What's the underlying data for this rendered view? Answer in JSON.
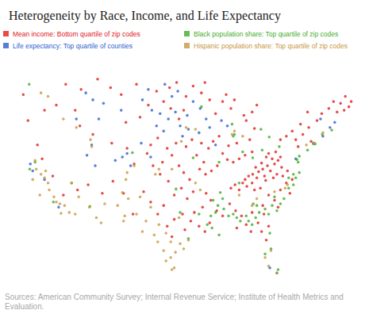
{
  "chart_data": {
    "type": "scatter",
    "title": "Heterogeneity by Race, Income, and Life Expectancy",
    "source": "Sources: American Community Survey; Internal Revenue Service; Institute of Health Metrics and Evaluation.",
    "xlim": [
      -126,
      -66
    ],
    "ylim": [
      24,
      50
    ],
    "tick_labels": false,
    "grid": false,
    "legend": "top",
    "marker": "circle",
    "series": [
      {
        "name": "Mean income: Bottom quartile of zip codes",
        "color": "#e0201b",
        "x": [
          -83.5,
          -82.8,
          -82.0,
          -81.5,
          -80.8,
          -81.2,
          -80.2,
          -82.5,
          -83.8,
          -84.5,
          -85.2,
          -85.8,
          -84.0,
          -83.0,
          -82.2,
          -81.8,
          -80.6,
          -79.8,
          -79.6,
          -80.4,
          -81.0,
          -82.3,
          -84.6,
          -85.5,
          -86.2,
          -84.2,
          -83.2,
          -86.8,
          -87.5,
          -88.2,
          -84.6,
          -85.8,
          -86.8,
          -87.8,
          -88.8,
          -89.6,
          -90.5,
          -91.5,
          -92.5,
          -93.5,
          -92.8,
          -94.0,
          -92.0,
          -93.2,
          -94.8,
          -95.8,
          -91.2,
          -90.2,
          -88.6,
          -87.2,
          -85.0,
          -84.2,
          -85.6,
          -84.6,
          -83.8,
          -86.0,
          -88.2,
          -89.6,
          -90.8,
          -91.8,
          -93.2,
          -94.6,
          -95.8,
          -92.6,
          -89.0,
          -87.6,
          -96.2,
          -97.0,
          -98.4,
          -99.6,
          -97.5,
          -99.0,
          -100.6,
          -101.8,
          -98.2,
          -99.8,
          -97.0,
          -96.2,
          -95.2,
          -96.6,
          -97.8,
          -95.6,
          -94.6,
          -98.8,
          -100.2,
          -101.4,
          -102.4,
          -98.6,
          -100.8,
          -97.4,
          -92.4,
          -91.6,
          -93.0,
          -90.6,
          -89.6,
          -91.8,
          -93.6,
          -92.6,
          -88.4,
          -87.4,
          -86.4,
          -85.6,
          -87.2,
          -84.6,
          -83.6,
          -82.6,
          -81.8,
          -83.0,
          -82.2,
          -84.8,
          -80.8,
          -79.8,
          -78.8,
          -78.2,
          -81.8,
          -80.2,
          -79.4,
          -78.6,
          -77.8,
          -82.8,
          -95.0,
          -96.4,
          -97.8,
          -99.0,
          -98.2,
          -96.0,
          -94.4,
          -100.6,
          -101.8,
          -99.6,
          -68.8,
          -69.6,
          -68.2,
          -70.2,
          -69.0,
          -71.6,
          -72.8,
          -75.2,
          -76.4,
          -77.8,
          -78.8,
          -77.2,
          -76.0,
          -79.8,
          -75.0,
          -73.6,
          -70.8,
          -67.8,
          -74.6,
          -76.8,
          -104.2,
          -106.8,
          -108.6,
          -110.8,
          -113.6,
          -116.2,
          -117.8,
          -119.8,
          -122.6,
          -123.4,
          -121.0,
          -120.2,
          -118.4,
          -116.6,
          -114.2,
          -112.4,
          -110.0,
          -108.2,
          -106.4,
          -104.6,
          -105.8,
          -108.4,
          -111.6,
          -113.8,
          -114.6,
          -103.6,
          -102.2,
          -106.0,
          -103.0,
          -104.8
        ],
        "values": [
          37.5,
          37.8,
          38.2,
          37.6,
          38.4,
          39.0,
          38.8,
          37.0,
          36.8,
          37.2,
          37.0,
          36.6,
          38.0,
          38.5,
          39.2,
          39.6,
          39.8,
          39.2,
          38.0,
          37.2,
          36.8,
          36.5,
          36.2,
          35.8,
          36.2,
          35.4,
          35.6,
          35.4,
          36.0,
          35.6,
          39.8,
          39.4,
          39.0,
          38.6,
          38.9,
          39.6,
          38.2,
          37.6,
          37.2,
          37.8,
          38.6,
          39.4,
          40.2,
          40.8,
          41.2,
          40.4,
          41.0,
          41.6,
          40.5,
          40.8,
          41.2,
          42.5,
          43.4,
          44.4,
          45.2,
          44.0,
          44.8,
          45.6,
          44.2,
          45.8,
          46.6,
          47.4,
          46.2,
          47.8,
          46.4,
          45.8,
          44.6,
          43.6,
          44.8,
          45.6,
          40.8,
          40.2,
          41.4,
          40.6,
          39.4,
          38.6,
          38.2,
          37.4,
          36.6,
          35.6,
          34.8,
          34.4,
          35.2,
          36.4,
          37.2,
          38.2,
          39.6,
          47.2,
          46.8,
          47.8,
          35.0,
          34.2,
          33.4,
          33.0,
          32.4,
          31.6,
          31.2,
          30.6,
          33.8,
          33.0,
          32.4,
          31.4,
          31.0,
          32.8,
          31.6,
          32.6,
          31.2,
          30.6,
          29.6,
          30.6,
          34.2,
          35.4,
          36.2,
          35.0,
          34.8,
          33.4,
          37.0,
          37.6,
          36.6,
          33.6,
          31.8,
          32.6,
          32.0,
          31.2,
          30.0,
          30.8,
          32.8,
          32.6,
          34.0,
          33.6,
          46.2,
          45.4,
          45.0,
          44.4,
          44.6,
          44.8,
          44.2,
          44.4,
          43.0,
          42.2,
          41.6,
          41.2,
          41.8,
          41.2,
          42.6,
          43.4,
          45.6,
          45.6,
          41.0,
          40.4,
          47.6,
          46.4,
          47.2,
          48.2,
          47.0,
          47.6,
          45.2,
          44.6,
          43.4,
          46.4,
          40.6,
          39.0,
          37.0,
          34.8,
          35.4,
          36.0,
          35.0,
          36.4,
          35.0,
          38.4,
          40.2,
          40.8,
          41.8,
          42.8,
          44.6,
          43.8,
          45.2,
          43.2,
          35.2,
          32.6
        ]
      },
      {
        "name": "Life expectancy: Top quartile of counties",
        "color": "#2f5fd0",
        "x": [
          -93.4,
          -94.6,
          -95.6,
          -92.4,
          -91.8,
          -93.6,
          -95.4,
          -96.8,
          -97.6,
          -98.8,
          -99.6,
          -100.8,
          -101.6,
          -100.2,
          -98.2,
          -97.2,
          -99.4,
          -102.2,
          -103.2,
          -96.4,
          -105.8,
          -106.6,
          -107.8,
          -105.2,
          -111.8,
          -112.6,
          -111.2,
          -109.8,
          -111.6,
          -112.8,
          -106.8,
          -110.6,
          -114.4,
          -121.8,
          -122.2,
          -119.8,
          -117.4,
          -74.2,
          -72.6,
          -71.4,
          -73.0,
          -70.6,
          -77.2,
          -81.6,
          -80.4,
          -90.8,
          -88.8,
          -89.8,
          -101.8,
          -103.4
        ],
        "values": [
          44.8,
          45.6,
          44.0,
          43.6,
          42.6,
          42.0,
          42.4,
          42.8,
          44.4,
          43.6,
          42.2,
          42.8,
          44.6,
          44.2,
          46.2,
          46.8,
          47.6,
          47.0,
          45.8,
          41.6,
          39.6,
          39.2,
          38.8,
          38.2,
          40.6,
          39.4,
          38.2,
          45.4,
          45.8,
          46.6,
          44.6,
          43.6,
          43.6,
          37.6,
          38.4,
          36.6,
          33.4,
          40.8,
          41.6,
          42.6,
          43.6,
          43.2,
          39.0,
          26.4,
          25.8,
          40.6,
          42.8,
          43.4,
          39.2,
          40.8
        ]
      },
      {
        "name": "Black population share: Top quartile of zip codes",
        "color": "#3fae29",
        "x": [
          -90.4,
          -90.8,
          -89.4,
          -88.6,
          -87.8,
          -87.2,
          -86.6,
          -85.6,
          -85.2,
          -84.6,
          -84.0,
          -83.4,
          -82.4,
          -81.8,
          -81.2,
          -80.4,
          -79.8,
          -80.8,
          -79.2,
          -78.4,
          -77.6,
          -77.2,
          -76.6,
          -77.6,
          -78.4,
          -91.4,
          -91.6,
          -92.2,
          -90.2,
          -93.6,
          -84.4,
          -83.8,
          -90.0,
          -89.6,
          -91.2,
          -90.2,
          -87.6,
          -87.8,
          -83.1,
          -81.7,
          -75.2,
          -73.9,
          -74.2,
          -77.0,
          -76.6,
          -76.8,
          -95.4,
          -96.8,
          -86.8,
          -84.5,
          -86.2,
          -82.9,
          -80.0,
          -88.0,
          -93.2,
          -94.6,
          -81.4,
          -80.2,
          -82.4,
          -81.6,
          -97.5,
          -118.3,
          -122.3,
          -121.4,
          -104.9,
          -115.2,
          -122.4,
          -112.1,
          -71.1,
          -72.7
        ],
        "values": [
          33.6,
          32.8,
          33.2,
          32.4,
          32.6,
          32.2,
          31.8,
          32.4,
          31.8,
          31.4,
          32.2,
          32.8,
          33.2,
          32.6,
          33.6,
          33.0,
          33.8,
          34.6,
          34.4,
          35.6,
          36.0,
          36.8,
          37.4,
          37.2,
          36.8,
          31.0,
          32.4,
          31.4,
          30.2,
          32.6,
          33.8,
          33.6,
          35.1,
          34.4,
          34.2,
          38.6,
          41.8,
          41.6,
          42.4,
          41.5,
          40.0,
          40.7,
          40.7,
          38.9,
          39.3,
          38.6,
          29.8,
          32.8,
          36.2,
          39.1,
          39.8,
          40.0,
          40.4,
          43.0,
          45.0,
          39.1,
          28.6,
          26.2,
          28.0,
          30.4,
          35.5,
          34.0,
          37.8,
          38.6,
          39.7,
          36.2,
          47.6,
          33.5,
          42.3,
          41.8
        ]
      },
      {
        "name": "Hispanic population share: Top quartile of zip codes",
        "color": "#c8973f",
        "x": [
          -119.8,
          -119.2,
          -120.4,
          -121.2,
          -119.0,
          -117.8,
          -117.2,
          -116.4,
          -115.6,
          -117.0,
          -118.2,
          -121.8,
          -120.6,
          -121.4,
          -114.6,
          -112.2,
          -111.0,
          -110.2,
          -109.6,
          -106.6,
          -106.2,
          -105.6,
          -107.4,
          -104.2,
          -103.6,
          -106.0,
          -105.8,
          -104.6,
          -102.6,
          -101.8,
          -103.2,
          -100.6,
          -99.6,
          -98.4,
          -97.8,
          -98.2,
          -99.2,
          -98.4,
          -97.6,
          -96.8,
          -100.4,
          -99.2,
          -101.2,
          -106.4,
          -97.0,
          -95.4,
          -96.2,
          -100.4,
          -101.0,
          -98.2,
          -120.4,
          -119.2,
          -116.6,
          -114.4,
          -112.0,
          -111.8,
          -115.2,
          -114.0,
          -96.6,
          -95.8,
          -94.2,
          -88.0,
          -87.6,
          -86.2,
          -81.4,
          -80.4,
          -81.8,
          -82.4,
          -83.8,
          -84.6,
          -79.0,
          -80.8,
          -78.6,
          -94.2,
          -93.4,
          -86.8,
          -74.0,
          -72.6,
          -75.4,
          -119.6
        ],
        "values": [
          36.8,
          36.2,
          37.2,
          37.8,
          35.4,
          34.0,
          33.8,
          33.6,
          32.8,
          32.7,
          34.6,
          36.6,
          34.8,
          38.8,
          32.6,
          33.4,
          32.2,
          31.6,
          33.8,
          35.1,
          32.4,
          34.4,
          33.6,
          32.6,
          34.6,
          36.6,
          37.4,
          38.2,
          31.8,
          33.4,
          30.6,
          29.4,
          28.4,
          27.6,
          26.4,
          26.2,
          27.2,
          29.4,
          28.2,
          29.2,
          31.4,
          30.4,
          30.2,
          31.8,
          32.2,
          29.6,
          28.6,
          37.8,
          37.2,
          37.8,
          46.6,
          46.2,
          43.6,
          42.6,
          41.2,
          40.4,
          36.2,
          34.6,
          41.0,
          42.6,
          42.4,
          41.8,
          42.2,
          41.6,
          28.4,
          25.8,
          26.6,
          27.6,
          34.4,
          33.6,
          35.6,
          35.2,
          36.0,
          36.2,
          35.4,
          34.8,
          40.8,
          42.0,
          40.6,
          37.6
        ]
      }
    ]
  }
}
